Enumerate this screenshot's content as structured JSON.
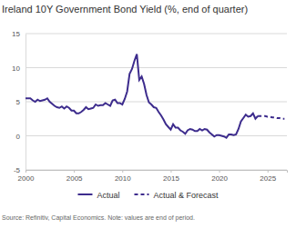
{
  "chart_data": {
    "type": "line",
    "title": "Ireland 10Y Government Bond Yield (%, end of quarter)",
    "source": "Source: Refinitiv, Capital Economics. Note: values are end of period.",
    "x": [
      2000,
      2000.25,
      2000.5,
      2000.75,
      2001,
      2001.25,
      2001.5,
      2001.75,
      2002,
      2002.25,
      2002.5,
      2002.75,
      2003,
      2003.25,
      2003.5,
      2003.75,
      2004,
      2004.25,
      2004.5,
      2004.75,
      2005,
      2005.25,
      2005.5,
      2005.75,
      2006,
      2006.25,
      2006.5,
      2006.75,
      2007,
      2007.25,
      2007.5,
      2007.75,
      2008,
      2008.25,
      2008.5,
      2008.75,
      2009,
      2009.25,
      2009.5,
      2009.75,
      2010,
      2010.25,
      2010.5,
      2010.75,
      2011,
      2011.25,
      2011.5,
      2011.75,
      2012,
      2012.25,
      2012.5,
      2012.75,
      2013,
      2013.25,
      2013.5,
      2013.75,
      2014,
      2014.25,
      2014.5,
      2014.75,
      2015,
      2015.25,
      2015.5,
      2015.75,
      2016,
      2016.25,
      2016.5,
      2016.75,
      2017,
      2017.25,
      2017.5,
      2017.75,
      2018,
      2018.25,
      2018.5,
      2018.75,
      2019,
      2019.25,
      2019.5,
      2019.75,
      2020,
      2020.25,
      2020.5,
      2020.75,
      2021,
      2021.25,
      2021.5,
      2021.75,
      2022,
      2022.25,
      2022.5,
      2022.75,
      2023,
      2023.25,
      2023.5,
      2023.75,
      2024,
      2024.25,
      2024.5,
      2024.75,
      2025,
      2025.25,
      2025.5,
      2025.75,
      2026,
      2026.25,
      2026.5,
      2026.75
    ],
    "series": [
      {
        "name": "Actual",
        "color": "#3d2c8d",
        "line_style": "solid",
        "values": [
          5.5,
          5.5,
          5.5,
          5.2,
          5.0,
          5.3,
          5.1,
          5.2,
          5.3,
          5.5,
          5.0,
          4.7,
          4.4,
          4.2,
          4.1,
          4.3,
          4.0,
          4.3,
          4.1,
          3.7,
          3.7,
          3.3,
          3.3,
          3.5,
          3.8,
          4.2,
          3.9,
          4.0,
          4.1,
          4.6,
          4.4,
          4.5,
          4.5,
          4.8,
          4.6,
          4.4,
          5.2,
          5.3,
          4.8,
          4.8,
          4.6,
          5.4,
          6.5,
          9.1,
          9.8,
          11.0,
          12.0,
          8.2,
          8.7,
          7.6,
          6.0,
          4.9,
          4.6,
          4.2,
          4.1,
          3.5,
          3.0,
          2.4,
          1.7,
          1.3,
          0.9,
          1.7,
          1.2,
          1.2,
          0.8,
          0.6,
          0.3,
          0.8,
          1.0,
          0.9,
          0.7,
          0.7,
          1.0,
          0.8,
          1.0,
          0.9,
          0.5,
          0.2,
          -0.1,
          0.1,
          0.1,
          0.0,
          -0.1,
          -0.3,
          0.2,
          0.2,
          0.1,
          0.2,
          1.0,
          2.1,
          2.6,
          3.1,
          2.8,
          2.9,
          3.3,
          2.5,
          2.9,
          null,
          null,
          null,
          null,
          null,
          null,
          null,
          null,
          null,
          null,
          null
        ]
      },
      {
        "name": "Actual & Forecast",
        "color": "#3d2c8d",
        "line_style": "dashed",
        "values": [
          null,
          null,
          null,
          null,
          null,
          null,
          null,
          null,
          null,
          null,
          null,
          null,
          null,
          null,
          null,
          null,
          null,
          null,
          null,
          null,
          null,
          null,
          null,
          null,
          null,
          null,
          null,
          null,
          null,
          null,
          null,
          null,
          null,
          null,
          null,
          null,
          null,
          null,
          null,
          null,
          null,
          null,
          null,
          null,
          null,
          null,
          null,
          null,
          null,
          null,
          null,
          null,
          null,
          null,
          null,
          null,
          null,
          null,
          null,
          null,
          null,
          null,
          null,
          null,
          null,
          null,
          null,
          null,
          null,
          null,
          null,
          null,
          null,
          null,
          null,
          null,
          null,
          null,
          null,
          null,
          null,
          null,
          null,
          null,
          null,
          null,
          null,
          null,
          null,
          null,
          null,
          null,
          null,
          null,
          null,
          null,
          2.9,
          2.9,
          2.9,
          2.9,
          2.8,
          2.8,
          2.7,
          2.7,
          2.6,
          2.6,
          2.5,
          2.5
        ]
      }
    ],
    "xlim": [
      2000,
      2027
    ],
    "xticks": [
      2000,
      2005,
      2010,
      2015,
      2020,
      2025
    ],
    "ylim": [
      -5,
      15
    ],
    "yticks": [
      -5,
      0,
      5,
      10,
      15
    ],
    "grid": true,
    "legend": "bottom"
  }
}
